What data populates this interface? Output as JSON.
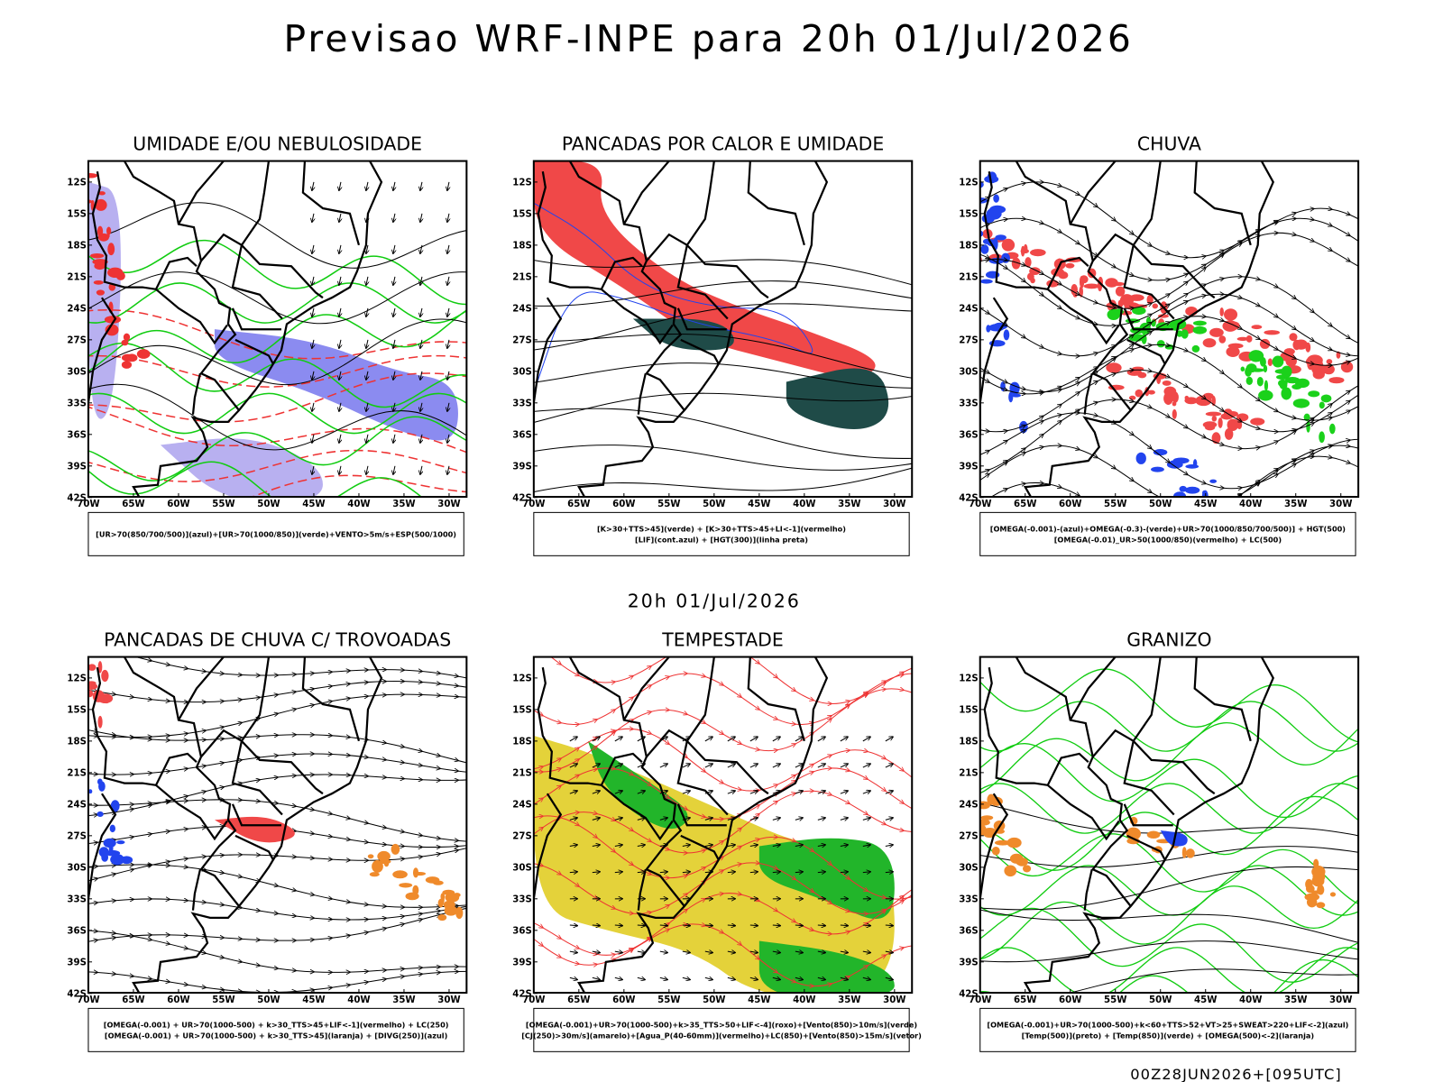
{
  "header": {
    "title": "Previsao WRF-INPE  para 20h 01/Jul/2026"
  },
  "subtitle": "20h 01/Jul/2026",
  "footer": "00Z28JUN2026+[095UTC]",
  "axes": {
    "lat_labels": [
      "12S",
      "15S",
      "18S",
      "21S",
      "24S",
      "27S",
      "30S",
      "33S",
      "36S",
      "39S",
      "42S"
    ],
    "lon_labels": [
      "70W",
      "65W",
      "60W",
      "55W",
      "50W",
      "45W",
      "40W",
      "35W",
      "30W"
    ]
  },
  "panels": [
    {
      "title": "UMIDADE E/OU NEBULOSIDADE",
      "legend": [
        "[UR>70(850/700/500)](azul)+[UR>70(1000/850)](verde)+VENTO>5m/s+ESP(500/1000)"
      ]
    },
    {
      "title": "PANCADAS POR CALOR E UMIDADE",
      "legend": [
        "[K>30+TTS>45](verde) + [K>30+TTS>45+LI<-1](vermelho)",
        "[LIF](cont.azul) + [HGT(300)](linha preta)"
      ]
    },
    {
      "title": "CHUVA",
      "legend": [
        "[OMEGA(-0.001)-(azul)+OMEGA(-0.3)-(verde)+UR>70(1000/850/700/500)] + HGT(500)",
        "[OMEGA(-0.01)_UR>50(1000/850)(vermelho) + LC(500)"
      ]
    },
    {
      "title": "PANCADAS DE CHUVA C/ TROVOADAS",
      "legend": [
        "[OMEGA(-0.001) + UR>70(1000-500) + k>30_TTS>45+LIF<-1](vermelho) + LC(250)",
        "[OMEGA(-0.001) + UR>70(1000-500) + k>30_TTS>45](laranja) + [DIVG(250)](azul)"
      ]
    },
    {
      "title": "TEMPESTADE",
      "legend": [
        "[OMEGA(-0.001)+UR>70(1000-500)+k>35_TTS>50+LIF<-4](roxo)+[Vento(850)>10m/s](verde)",
        "[CJ(250)>30m/s](amarelo)+[Agua_P(40-60mm)](vermelho)+LC(850)+[Vento(850)>15m/s](vetor)"
      ]
    },
    {
      "title": "GRANIZO",
      "legend": [
        "[OMEGA(-0.001)+UR>70(1000-500)+k<60+TTS>52+VT>25+SWEAT>220+LIF<-2](azul)",
        "[Temp(500)](preto) + [Temp(850)](verde) + [OMEGA(500)<-2](laranja)"
      ]
    }
  ]
}
